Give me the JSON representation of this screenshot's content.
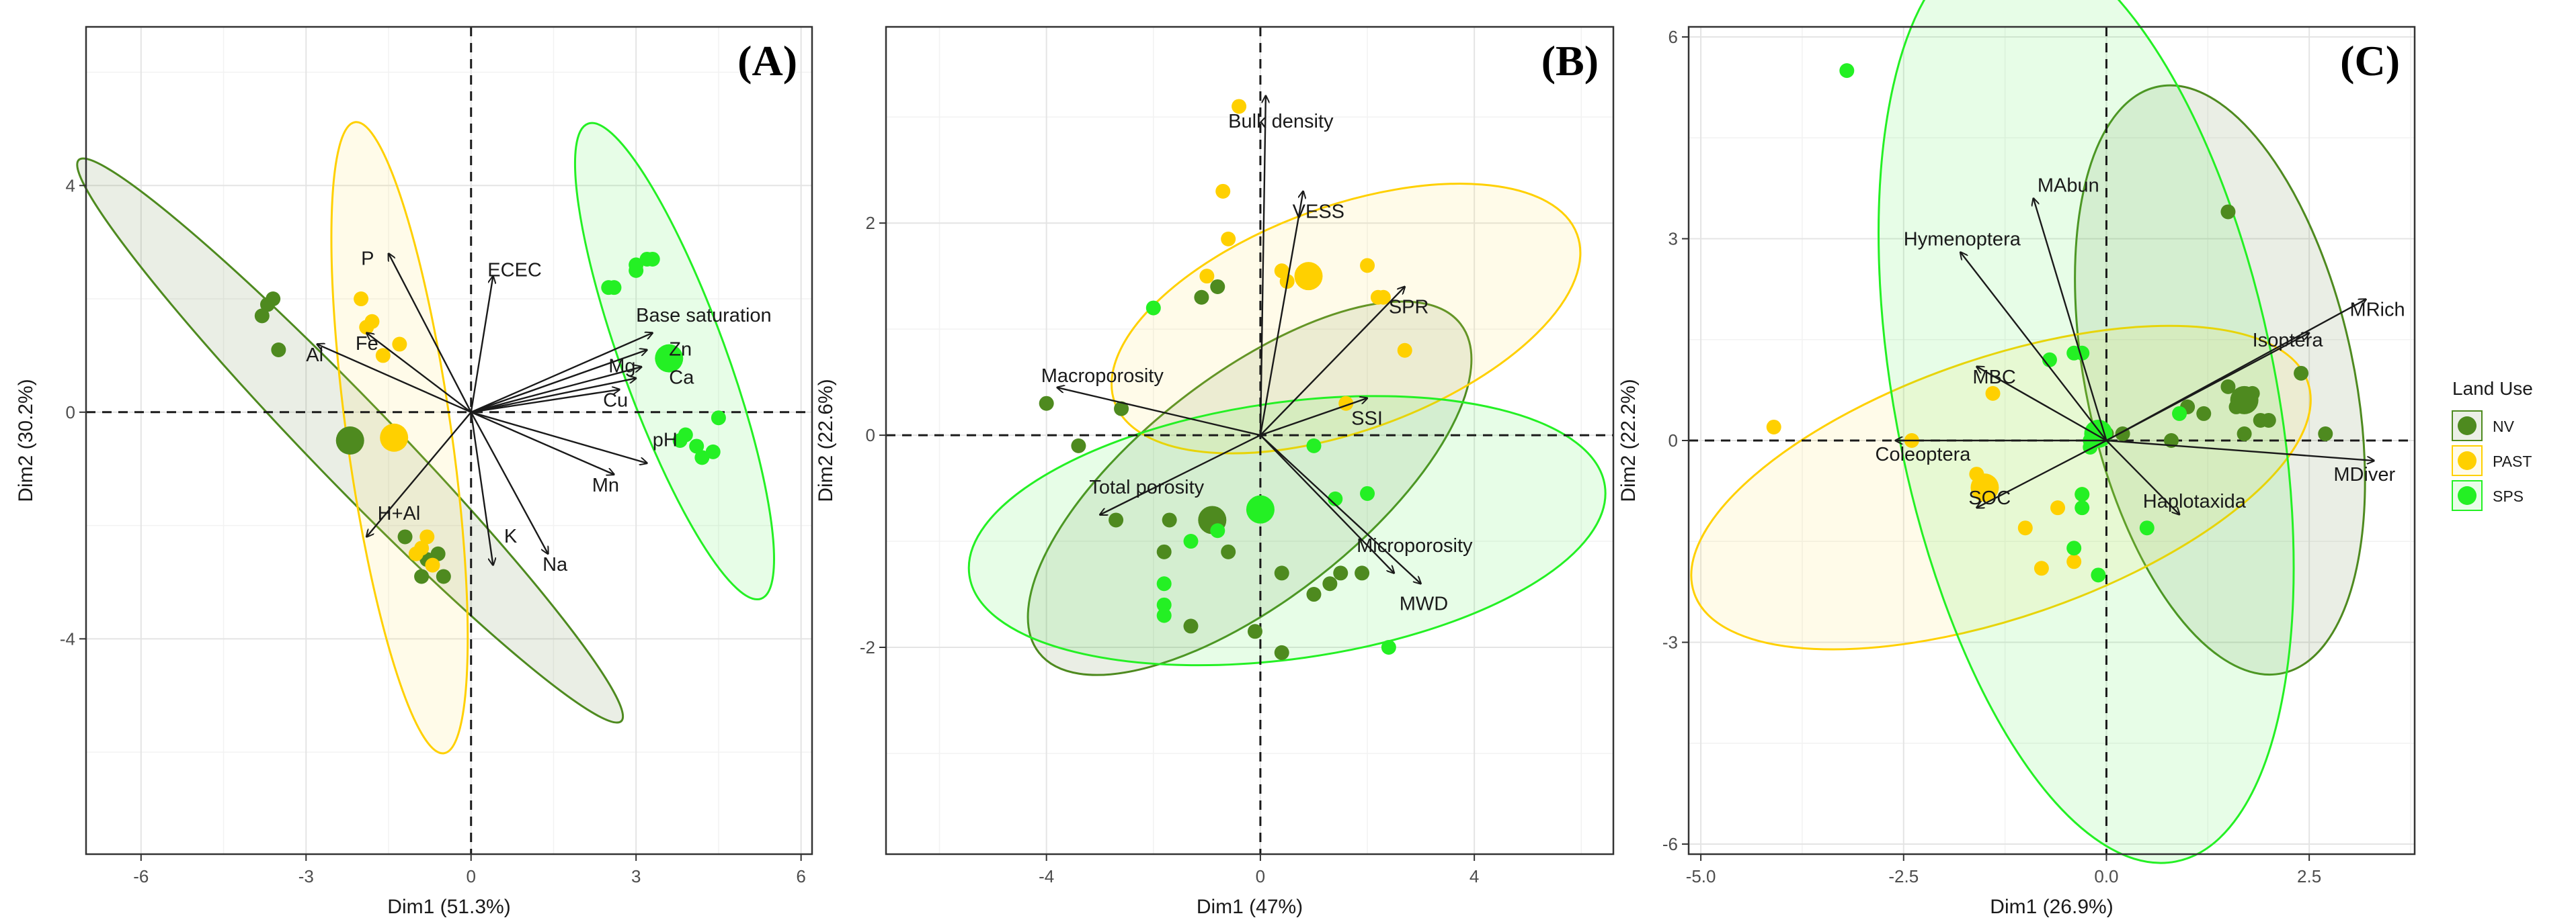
{
  "chart_data": [
    {
      "type": "scatter",
      "panel_label": "(A)",
      "xlabel": "Dim1 (51.3%)",
      "ylabel": "Dim2 (30.2%)",
      "xlim": [
        -7,
        6.2
      ],
      "ylim": [
        -7.8,
        6.8
      ],
      "xticks": [
        -6,
        -3,
        0,
        3,
        6
      ],
      "xtick_labels": [
        "-6",
        "-3",
        "0",
        "3",
        "6"
      ],
      "yticks": [
        -4,
        0,
        4
      ],
      "ytick_labels": [
        "-4",
        "0",
        "4"
      ],
      "grid": true,
      "series": [
        {
          "name": "NV",
          "points": [
            [
              -3.7,
              1.9
            ],
            [
              -3.8,
              1.7
            ],
            [
              -3.5,
              1.1
            ],
            [
              -3.6,
              2.0
            ],
            [
              -0.8,
              -2.6
            ],
            [
              -0.5,
              -2.9
            ],
            [
              -0.9,
              -2.9
            ],
            [
              -0.6,
              -2.5
            ],
            [
              -1.2,
              -2.2
            ]
          ],
          "centroid": [
            -2.2,
            -0.5
          ],
          "ellipse": {
            "cx": -2.2,
            "cy": -0.5,
            "rx": 7.1,
            "ry": 0.75,
            "angle": -46
          }
        },
        {
          "name": "PAST",
          "points": [
            [
              -2.0,
              2.0
            ],
            [
              -1.9,
              1.5
            ],
            [
              -1.8,
              1.6
            ],
            [
              -1.3,
              1.2
            ],
            [
              -1.6,
              1.0
            ],
            [
              -0.8,
              -2.2
            ],
            [
              -0.9,
              -2.4
            ],
            [
              -1.0,
              -2.5
            ],
            [
              -0.7,
              -2.7
            ]
          ],
          "centroid": [
            -1.4,
            -0.45
          ],
          "ellipse": {
            "cx": -1.3,
            "cy": -0.45,
            "rx": 5.8,
            "ry": 0.95,
            "angle": -82
          }
        },
        {
          "name": "SPS",
          "points": [
            [
              2.5,
              2.2
            ],
            [
              2.6,
              2.2
            ],
            [
              3.0,
              2.6
            ],
            [
              3.2,
              2.7
            ],
            [
              3.3,
              2.7
            ],
            [
              3.0,
              2.5
            ],
            [
              3.8,
              -0.5
            ],
            [
              4.1,
              -0.6
            ],
            [
              4.2,
              -0.8
            ],
            [
              4.4,
              -0.7
            ],
            [
              4.5,
              -0.1
            ],
            [
              3.9,
              -0.4
            ]
          ],
          "centroid": [
            3.6,
            0.95
          ],
          "ellipse": {
            "cx": 3.7,
            "cy": 0.9,
            "rx": 4.6,
            "ry": 0.95,
            "angle": -70
          }
        }
      ],
      "vectors": [
        {
          "label": "P",
          "x": -1.5,
          "y": 2.8,
          "lx": -2.0,
          "ly": 2.6
        },
        {
          "label": "ECEC",
          "x": 0.4,
          "y": 2.4,
          "lx": 0.3,
          "ly": 2.4
        },
        {
          "label": "Base saturation",
          "x": 3.3,
          "y": 1.4,
          "lx": 3.0,
          "ly": 1.6
        },
        {
          "label": "Zn",
          "x": 3.2,
          "y": 1.1,
          "lx": 3.6,
          "ly": 1.0
        },
        {
          "label": "Mg",
          "x": 3.1,
          "y": 0.8,
          "lx": 2.5,
          "ly": 0.7
        },
        {
          "label": "Ca",
          "x": 3.0,
          "y": 0.6,
          "lx": 3.6,
          "ly": 0.5
        },
        {
          "label": "Cu",
          "x": 2.7,
          "y": 0.4,
          "lx": 2.4,
          "ly": 0.1
        },
        {
          "label": "pH",
          "x": 3.2,
          "y": -0.9,
          "lx": 3.3,
          "ly": -0.6
        },
        {
          "label": "Mn",
          "x": 2.6,
          "y": -1.1,
          "lx": 2.2,
          "ly": -1.4
        },
        {
          "label": "Fe",
          "x": -1.9,
          "y": 1.4,
          "lx": -2.1,
          "ly": 1.1
        },
        {
          "label": "Al",
          "x": -2.8,
          "y": 1.2,
          "lx": -3.0,
          "ly": 0.9
        },
        {
          "label": "H+Al",
          "x": -1.9,
          "y": -2.2,
          "lx": -1.7,
          "ly": -1.9
        },
        {
          "label": "K",
          "x": 0.4,
          "y": -2.7,
          "lx": 0.6,
          "ly": -2.3
        },
        {
          "label": "Na",
          "x": 1.4,
          "y": -2.5,
          "lx": 1.3,
          "ly": -2.8
        }
      ]
    },
    {
      "type": "scatter",
      "panel_label": "(B)",
      "xlabel": "Dim1 (47%)",
      "ylabel": "Dim2 (22.6%)",
      "xlim": [
        -7,
        6.6
      ],
      "ylim": [
        -3.95,
        3.85
      ],
      "xticks": [
        -4,
        0,
        4
      ],
      "xtick_labels": [
        "-4",
        "0",
        "4"
      ],
      "yticks": [
        -2,
        0,
        2
      ],
      "ytick_labels": [
        "-2",
        "0",
        "2"
      ],
      "grid": true,
      "series": [
        {
          "name": "NV",
          "points": [
            [
              -4.0,
              0.3
            ],
            [
              -3.4,
              -0.1
            ],
            [
              -2.6,
              0.25
            ],
            [
              -2.7,
              -0.8
            ],
            [
              -1.7,
              -0.8
            ],
            [
              -1.8,
              -1.1
            ],
            [
              -1.3,
              -1.8
            ],
            [
              -0.6,
              -1.1
            ],
            [
              0.4,
              -1.3
            ],
            [
              1.0,
              -1.5
            ],
            [
              1.3,
              -1.4
            ],
            [
              1.5,
              -1.3
            ],
            [
              -0.1,
              -1.85
            ],
            [
              0.4,
              -2.05
            ],
            [
              1.9,
              -1.3
            ],
            [
              -1.1,
              1.3
            ],
            [
              -0.8,
              1.4
            ]
          ],
          "centroid": [
            -0.9,
            -0.8
          ],
          "ellipse": {
            "cx": -0.2,
            "cy": -0.5,
            "rx": 5.0,
            "ry": 2.1,
            "angle": 38
          }
        },
        {
          "name": "PAST",
          "points": [
            [
              -0.4,
              3.1
            ],
            [
              -0.7,
              2.3
            ],
            [
              -0.6,
              1.85
            ],
            [
              -1.0,
              1.5
            ],
            [
              0.4,
              1.55
            ],
            [
              0.5,
              1.45
            ],
            [
              2.0,
              1.6
            ],
            [
              2.2,
              1.3
            ],
            [
              2.3,
              1.3
            ],
            [
              2.7,
              0.8
            ],
            [
              1.6,
              0.3
            ]
          ],
          "centroid": [
            0.9,
            1.5
          ],
          "ellipse": {
            "cx": 1.6,
            "cy": 1.1,
            "rx": 4.6,
            "ry": 2.1,
            "angle": 20
          }
        },
        {
          "name": "SPS",
          "points": [
            [
              -2.0,
              1.2
            ],
            [
              -1.8,
              -1.4
            ],
            [
              -1.8,
              -1.6
            ],
            [
              -1.8,
              -1.7
            ],
            [
              -1.3,
              -1.0
            ],
            [
              -0.8,
              -0.9
            ],
            [
              2.4,
              -2.0
            ],
            [
              1.4,
              -0.6
            ],
            [
              2.0,
              -0.55
            ],
            [
              1.0,
              -0.1
            ]
          ],
          "centroid": [
            0.0,
            -0.7
          ],
          "ellipse": {
            "cx": 0.5,
            "cy": -0.9,
            "rx": 6.0,
            "ry": 2.4,
            "angle": 8
          }
        }
      ],
      "vectors": [
        {
          "label": "Bulk density",
          "x": 0.1,
          "y": 3.2,
          "lx": -0.6,
          "ly": 2.9
        },
        {
          "label": "VESS",
          "x": 0.8,
          "y": 2.3,
          "lx": 0.6,
          "ly": 2.05
        },
        {
          "label": "SPR",
          "x": 2.7,
          "y": 1.4,
          "lx": 2.4,
          "ly": 1.15
        },
        {
          "label": "SSI",
          "x": 2.0,
          "y": 0.35,
          "lx": 1.7,
          "ly": 0.1
        },
        {
          "label": "Macroporosity",
          "x": -3.8,
          "y": 0.45,
          "lx": -4.1,
          "ly": 0.5
        },
        {
          "label": "Total porosity",
          "x": -3.0,
          "y": -0.75,
          "lx": -3.2,
          "ly": -0.55
        },
        {
          "label": "Microporosity",
          "x": 2.5,
          "y": -1.3,
          "lx": 1.8,
          "ly": -1.1
        },
        {
          "label": "MWD",
          "x": 3.0,
          "y": -1.4,
          "lx": 2.6,
          "ly": -1.65
        }
      ]
    },
    {
      "type": "scatter",
      "panel_label": "(C)",
      "xlabel": "Dim1 (26.9%)",
      "ylabel": "Dim2 (22.2%)",
      "xlim": [
        -5.15,
        3.8
      ],
      "ylim": [
        -6.15,
        6.15
      ],
      "xticks": [
        -5.0,
        -2.5,
        0.0,
        2.5
      ],
      "xtick_labels": [
        "-5.0",
        "-2.5",
        "0.0",
        "2.5"
      ],
      "yticks": [
        -6,
        -3,
        0,
        3,
        6
      ],
      "ytick_labels": [
        "-6",
        "-3",
        "0",
        "3",
        "6"
      ],
      "grid": true,
      "series": [
        {
          "name": "NV",
          "points": [
            [
              1.5,
              3.4
            ],
            [
              2.4,
              1.0
            ],
            [
              1.5,
              0.8
            ],
            [
              1.8,
              0.7
            ],
            [
              1.6,
              0.5
            ],
            [
              1.9,
              0.3
            ],
            [
              2.0,
              0.3
            ],
            [
              1.7,
              0.1
            ],
            [
              2.7,
              0.1
            ],
            [
              1.0,
              0.5
            ],
            [
              1.2,
              0.4
            ],
            [
              0.8,
              0.0
            ],
            [
              0.0,
              0.1
            ],
            [
              -0.1,
              0.0
            ],
            [
              0.2,
              0.1
            ]
          ],
          "centroid": [
            1.7,
            0.6
          ],
          "ellipse": {
            "cx": 1.4,
            "cy": 0.9,
            "rx": 3.7,
            "ry": 1.65,
            "angle": -78
          }
        },
        {
          "name": "PAST",
          "points": [
            [
              -4.1,
              0.2
            ],
            [
              -2.4,
              0.0
            ],
            [
              -1.5,
              -0.8
            ],
            [
              -1.0,
              -1.3
            ],
            [
              -0.6,
              -1.0
            ],
            [
              -0.8,
              -1.9
            ],
            [
              -0.4,
              -1.8
            ],
            [
              -1.6,
              -0.5
            ],
            [
              -1.4,
              0.7
            ],
            [
              -0.3,
              -0.8
            ]
          ],
          "centroid": [
            -1.5,
            -0.7
          ],
          "ellipse": {
            "cx": -1.3,
            "cy": -0.7,
            "rx": 4.0,
            "ry": 1.6,
            "angle": 19
          }
        },
        {
          "name": "SPS",
          "points": [
            [
              -3.2,
              5.5
            ],
            [
              -0.7,
              1.2
            ],
            [
              -0.4,
              1.3
            ],
            [
              -0.3,
              1.3
            ],
            [
              -0.2,
              0.0
            ],
            [
              -0.3,
              -0.8
            ],
            [
              -0.4,
              -1.6
            ],
            [
              -0.1,
              -2.0
            ],
            [
              0.5,
              -1.3
            ],
            [
              0.9,
              0.4
            ],
            [
              -0.2,
              -0.1
            ],
            [
              -0.3,
              -1.0
            ]
          ],
          "centroid": [
            -0.1,
            0.1
          ],
          "ellipse": {
            "cx": -0.25,
            "cy": 0.6,
            "rx": 5.8,
            "ry": 2.35,
            "angle": -79
          }
        }
      ],
      "vectors": [
        {
          "label": "MAbun",
          "x": -0.9,
          "y": 3.6,
          "lx": -0.85,
          "ly": 3.7
        },
        {
          "label": "Hymenoptera",
          "x": -1.8,
          "y": 2.8,
          "lx": -2.5,
          "ly": 2.9
        },
        {
          "label": "MRich",
          "x": 3.2,
          "y": 2.1,
          "lx": 3.0,
          "ly": 1.85
        },
        {
          "label": "Isoptera",
          "x": 2.5,
          "y": 1.6,
          "lx": 1.8,
          "ly": 1.4
        },
        {
          "label": "MBC",
          "x": -1.6,
          "y": 1.1,
          "lx": -1.65,
          "ly": 0.85
        },
        {
          "label": "Coleoptera",
          "x": -2.6,
          "y": 0.0,
          "lx": -2.85,
          "ly": -0.3
        },
        {
          "label": "MDiver",
          "x": 3.3,
          "y": -0.3,
          "lx": 2.8,
          "ly": -0.6
        },
        {
          "label": "SOC",
          "x": -1.6,
          "y": -1.0,
          "lx": -1.7,
          "ly": -0.95
        },
        {
          "label": "Haplotaxida",
          "x": 0.9,
          "y": -1.1,
          "lx": 0.45,
          "ly": -1.0
        }
      ]
    }
  ],
  "legend": {
    "title": "Land Use",
    "position": "right",
    "entries": [
      {
        "label": "NV"
      },
      {
        "label": "PAST"
      },
      {
        "label": "SPS"
      }
    ]
  },
  "colors": {
    "NV": "#4e8a1f",
    "PAST": "#ffd000",
    "SPS": "#24f024",
    "NV_fill": "#5a7a34",
    "PAST_fill": "#ffdd55",
    "SPS_fill": "#44ee44"
  }
}
